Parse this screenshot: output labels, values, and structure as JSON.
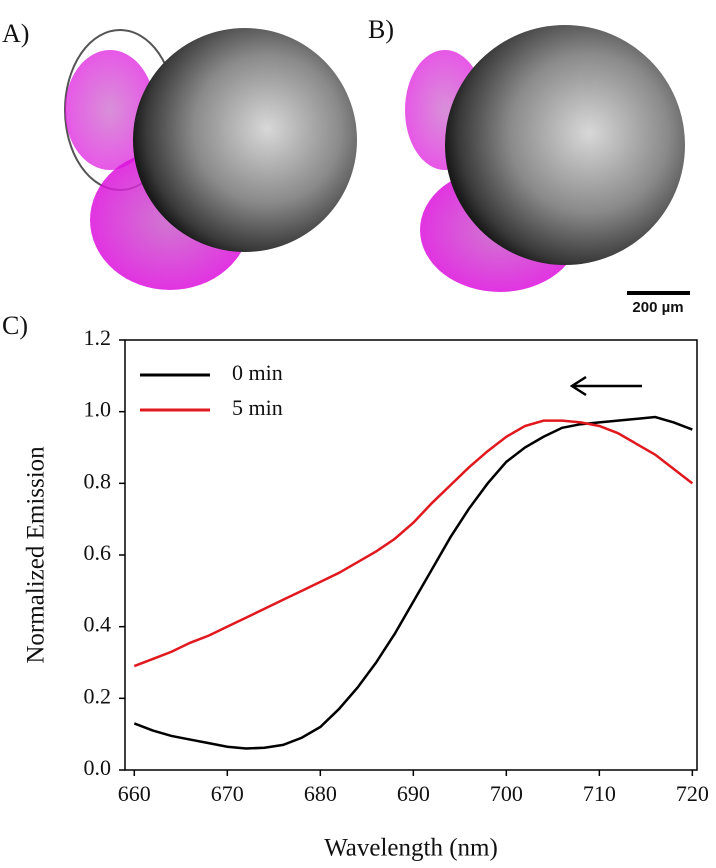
{
  "panels": [
    "A)",
    "B)",
    "C)"
  ],
  "scale_bar": "200 µm",
  "chart_data": {
    "type": "line",
    "x": [
      660,
      662,
      664,
      666,
      668,
      670,
      672,
      674,
      676,
      678,
      680,
      682,
      684,
      686,
      688,
      690,
      692,
      694,
      696,
      698,
      700,
      702,
      704,
      706,
      708,
      710,
      712,
      714,
      716,
      718,
      720
    ],
    "series": [
      {
        "name": "0 min",
        "color": "#000000",
        "values": [
          0.13,
          0.11,
          0.095,
          0.085,
          0.075,
          0.065,
          0.06,
          0.062,
          0.07,
          0.09,
          0.12,
          0.17,
          0.23,
          0.3,
          0.38,
          0.47,
          0.56,
          0.65,
          0.73,
          0.8,
          0.86,
          0.9,
          0.93,
          0.955,
          0.965,
          0.97,
          0.975,
          0.98,
          0.985,
          0.97,
          0.95
        ]
      },
      {
        "name": "5 min",
        "color": "#e0191e",
        "values": [
          0.29,
          0.31,
          0.33,
          0.355,
          0.375,
          0.4,
          0.425,
          0.45,
          0.475,
          0.5,
          0.525,
          0.55,
          0.58,
          0.61,
          0.645,
          0.69,
          0.745,
          0.795,
          0.845,
          0.89,
          0.93,
          0.96,
          0.975,
          0.975,
          0.97,
          0.96,
          0.94,
          0.91,
          0.88,
          0.84,
          0.8
        ]
      }
    ],
    "x_label": "Wavelength (nm)",
    "y_label": "Normalized Emission",
    "xlim": [
      659,
      720.5
    ],
    "ylim": [
      0,
      1.2
    ],
    "xticks": [
      660,
      670,
      680,
      690,
      700,
      710,
      720
    ],
    "yticks": [
      {
        "value": 0,
        "label": "0.0"
      },
      0.2,
      0.4,
      0.6,
      0.8,
      {
        "value": 1,
        "label": "1.0"
      },
      1.2
    ],
    "legend": "upper left"
  }
}
